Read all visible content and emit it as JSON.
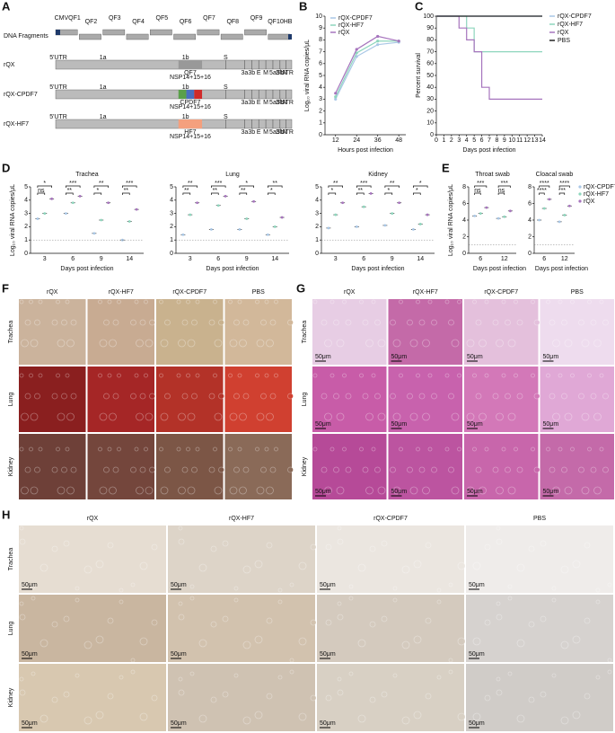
{
  "panel_labels": [
    "A",
    "B",
    "C",
    "D",
    "E",
    "F",
    "G",
    "H"
  ],
  "panelA": {
    "row_labels": [
      "DNA Fragments",
      "rQX",
      "rQX-CPDF7",
      "rQX-HF7"
    ],
    "fragments": [
      "CMVQF1",
      "QF2",
      "QF3",
      "QF4",
      "QF5",
      "QF6",
      "QF7",
      "QF8",
      "QF9",
      "QF10HB"
    ],
    "genes": [
      "5'UTR",
      "1a",
      "1b",
      "S",
      "3a",
      "3b",
      "E",
      "M",
      "5a",
      "5b",
      "N",
      "3'UTR"
    ],
    "inserts": [
      "QF7",
      "CPDF7",
      "HF7"
    ],
    "insert_region": "NSP14+15+16"
  },
  "chart_data": [
    {
      "type": "line",
      "ylabel": "Log₁₀ viral RNA copies/μL",
      "xlabel": "Hours post infection",
      "x": [
        12,
        24,
        36,
        48
      ],
      "xlim": [
        6,
        52
      ],
      "xticks": [
        12,
        24,
        36,
        48
      ],
      "ylim": [
        0,
        10
      ],
      "yticks": [
        0,
        1,
        2,
        3,
        4,
        5,
        6,
        7,
        8,
        9,
        10
      ],
      "legend": "top-left",
      "series": [
        {
          "name": "rQX-CPDF7",
          "color": "#a9c7e6",
          "values": [
            3.0,
            6.6,
            7.6,
            7.8
          ]
        },
        {
          "name": "rQX-HF7",
          "color": "#8ed6bd",
          "values": [
            3.2,
            6.9,
            7.9,
            7.9
          ]
        },
        {
          "name": "rQX",
          "color": "#a674bd",
          "values": [
            3.5,
            7.2,
            8.3,
            7.9
          ]
        }
      ]
    },
    {
      "type": "step",
      "ylabel": "Percent survival",
      "xlabel": "Days post infection",
      "x": [
        0,
        3,
        4,
        5,
        6,
        7,
        14
      ],
      "xlim": [
        0,
        14
      ],
      "xticks": [
        0,
        1,
        2,
        3,
        4,
        5,
        6,
        7,
        8,
        9,
        10,
        11,
        12,
        13,
        14
      ],
      "ylim": [
        0,
        100
      ],
      "yticks": [
        0,
        10,
        20,
        30,
        40,
        50,
        60,
        70,
        80,
        90,
        100
      ],
      "legend": "right",
      "series": [
        {
          "name": "rQX-CPDF7",
          "color": "#a9c7e6",
          "values": [
            100,
            100,
            100,
            100,
            100,
            100,
            100
          ]
        },
        {
          "name": "rQX-HF7",
          "color": "#8ed6bd",
          "values": [
            100,
            100,
            90,
            70,
            70,
            70,
            70
          ]
        },
        {
          "name": "rQX",
          "color": "#a674bd",
          "values": [
            100,
            90,
            80,
            70,
            40,
            30,
            30
          ]
        },
        {
          "name": "PBS",
          "color": "#222222",
          "values": [
            100,
            100,
            100,
            100,
            100,
            100,
            100
          ]
        }
      ]
    },
    {
      "type": "dot",
      "title": "Trachea",
      "ylabel": "Log₁₀ viral RNA copies/μL",
      "xlabel": "Days post infection",
      "categories": [
        "3",
        "6",
        "9",
        "14"
      ],
      "ylim": [
        0,
        5
      ],
      "yticks": [
        0,
        1,
        2,
        3,
        4,
        5
      ],
      "series": [
        {
          "name": "rQX-CPDF7",
          "color": "#a9c7e6",
          "values": [
            2.6,
            3.0,
            1.5,
            1.0
          ]
        },
        {
          "name": "rQX-HF7",
          "color": "#8ed6bd",
          "values": [
            3.0,
            3.8,
            2.5,
            2.4
          ]
        },
        {
          "name": "rQX",
          "color": "#a674bd",
          "values": [
            4.1,
            4.3,
            3.8,
            3.3
          ]
        }
      ],
      "significance": [
        [
          "*",
          "ns"
        ],
        [
          "***",
          "**"
        ],
        [
          "**",
          "*"
        ],
        [
          "***",
          "**"
        ]
      ]
    },
    {
      "type": "dot",
      "title": "Lung",
      "xlabel": "Days post infection",
      "categories": [
        "3",
        "6",
        "9",
        "14"
      ],
      "ylim": [
        0,
        5
      ],
      "yticks": [
        0,
        1,
        2,
        3,
        4,
        5
      ],
      "series": [
        {
          "name": "rQX-CPDF7",
          "color": "#a9c7e6",
          "values": [
            1.4,
            1.8,
            1.8,
            1.4
          ]
        },
        {
          "name": "rQX-HF7",
          "color": "#8ed6bd",
          "values": [
            2.9,
            3.6,
            2.6,
            2.0
          ]
        },
        {
          "name": "rQX",
          "color": "#a674bd",
          "values": [
            3.8,
            4.3,
            3.9,
            2.7
          ]
        }
      ],
      "significance": [
        [
          "**",
          "**"
        ],
        [
          "***",
          "**"
        ],
        [
          "*",
          "**"
        ],
        [
          "**",
          "*"
        ]
      ]
    },
    {
      "type": "dot",
      "title": "Kidney",
      "xlabel": "Days post infection",
      "categories": [
        "3",
        "6",
        "9",
        "14"
      ],
      "ylim": [
        0,
        5
      ],
      "yticks": [
        0,
        1,
        2,
        3,
        4,
        5
      ],
      "series": [
        {
          "name": "rQX-CPDF7",
          "color": "#a9c7e6",
          "values": [
            1.9,
            2.0,
            2.1,
            1.8
          ]
        },
        {
          "name": "rQX-HF7",
          "color": "#8ed6bd",
          "values": [
            2.9,
            3.5,
            3.0,
            2.2
          ]
        },
        {
          "name": "rQX",
          "color": "#a674bd",
          "values": [
            3.8,
            4.5,
            3.8,
            2.9
          ]
        }
      ],
      "significance": [
        [
          "**",
          "*"
        ],
        [
          "***",
          "**"
        ],
        [
          "**",
          "*"
        ],
        [
          "*",
          "*"
        ]
      ]
    },
    {
      "type": "dot",
      "title": "Throat swab",
      "ylabel": "Log₁₀ viral RNA copies/μL",
      "xlabel": "Days post infection",
      "categories": [
        "6",
        "12"
      ],
      "ylim": [
        0,
        8
      ],
      "yticks": [
        0,
        2,
        4,
        6,
        8
      ],
      "series": [
        {
          "name": "rQX-CPDF7",
          "color": "#a9c7e6",
          "values": [
            4.5,
            4.2
          ]
        },
        {
          "name": "rQX-HF7",
          "color": "#8ed6bd",
          "values": [
            4.8,
            4.4
          ]
        },
        {
          "name": "rQX",
          "color": "#a674bd",
          "values": [
            5.5,
            5.1
          ]
        }
      ],
      "significance": [
        [
          "***",
          "ns"
        ],
        [
          "***",
          "ns"
        ]
      ]
    },
    {
      "type": "dot",
      "title": "Cloacal swab",
      "xlabel": "Days post infection",
      "categories": [
        "6",
        "12"
      ],
      "ylim": [
        0,
        8
      ],
      "yticks": [
        0,
        2,
        4,
        6,
        8
      ],
      "legend": "right",
      "series": [
        {
          "name": "rQX-CPDF7",
          "color": "#a9c7e6",
          "values": [
            4.0,
            3.8
          ]
        },
        {
          "name": "rQX-HF7",
          "color": "#8ed6bd",
          "values": [
            5.4,
            4.6
          ]
        },
        {
          "name": "rQX",
          "color": "#a674bd",
          "values": [
            6.5,
            5.7
          ]
        }
      ],
      "significance": [
        [
          "****",
          "****"
        ],
        [
          "****",
          "***"
        ]
      ]
    }
  ],
  "panelF": {
    "columns": [
      "rQX",
      "rQX-HF7",
      "rQX-CPDF7",
      "PBS"
    ],
    "rows": [
      "Trachea",
      "Lung",
      "Kidney"
    ]
  },
  "panelG": {
    "columns": [
      "rQX",
      "rQX-HF7",
      "rQX-CPDF7",
      "PBS"
    ],
    "rows": [
      "Trachea",
      "Lung",
      "Kidney"
    ],
    "scale": "50μm"
  },
  "panelH": {
    "columns": [
      "rQX",
      "rQX-HF7",
      "rQX-CPDF7",
      "PBS"
    ],
    "rows": [
      "Trachea",
      "Lung",
      "Kidney"
    ],
    "scale": "50μm"
  }
}
